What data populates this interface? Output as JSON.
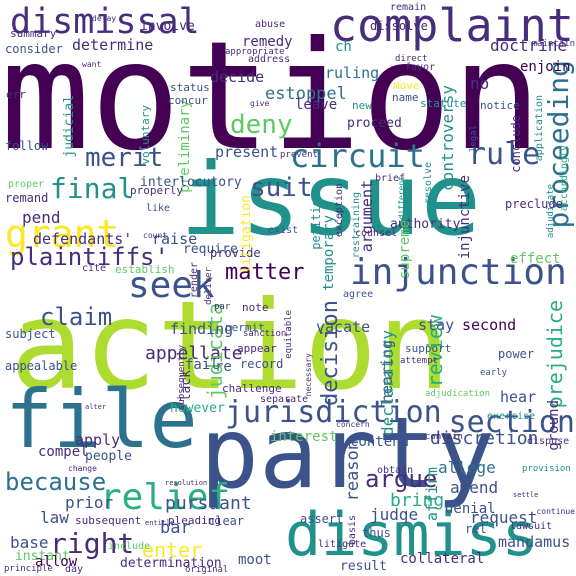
{
  "palette": {
    "deep_purple": "#440154",
    "purple": "#472d7b",
    "indigo": "#3b528b",
    "blue": "#2c728e",
    "teal": "#21918c",
    "green": "#28ae80",
    "light_green": "#5ec962",
    "lime": "#addc30",
    "yellow": "#fde725"
  },
  "words": [
    {
      "text": "motion",
      "color": "#440154"
    },
    {
      "text": "action",
      "color": "#addc30"
    },
    {
      "text": "issue",
      "color": "#21918c"
    },
    {
      "text": "party",
      "color": "#3b528b"
    },
    {
      "text": "file",
      "color": "#2c728e"
    },
    {
      "text": "dismiss",
      "color": "#21918c"
    },
    {
      "text": "complaint",
      "color": "#472d7b"
    },
    {
      "text": "dismissal",
      "color": "#472d7b"
    },
    {
      "text": "injunction",
      "color": "#3b528b"
    },
    {
      "text": "jurisdiction",
      "color": "#3b528b"
    },
    {
      "text": "grant",
      "color": "#fde725"
    },
    {
      "text": "circuit",
      "color": "#2c728e"
    },
    {
      "text": "seek",
      "color": "#3b528b"
    },
    {
      "text": "relief",
      "color": "#28ae80"
    },
    {
      "text": "section",
      "color": "#3b528b"
    },
    {
      "text": "rule",
      "color": "#3b528b"
    },
    {
      "text": "deny",
      "color": "#5ec962"
    },
    {
      "text": "suit",
      "color": "#3b528b"
    },
    {
      "text": "merit",
      "color": "#3b528b"
    },
    {
      "text": "final",
      "color": "#21918c"
    },
    {
      "text": "claim",
      "color": "#3b528b"
    },
    {
      "text": "matter",
      "color": "#440154"
    },
    {
      "text": "plaintiffs'",
      "color": "#472d7b"
    },
    {
      "text": "proceeding",
      "color": "#2c728e"
    },
    {
      "text": "because",
      "color": "#2c728e"
    },
    {
      "text": "right",
      "color": "#472d7b"
    },
    {
      "text": "enter",
      "color": "#fde725"
    },
    {
      "text": "appellate",
      "color": "#472d7b"
    },
    {
      "text": "decision",
      "color": "#3b528b"
    },
    {
      "text": "judicata",
      "color": "#5ec962"
    },
    {
      "text": "discretion",
      "color": "#3b528b"
    },
    {
      "text": "pursuant",
      "color": "#3b528b"
    },
    {
      "text": "argue",
      "color": "#472d7b"
    },
    {
      "text": "review",
      "color": "#28ae80"
    },
    {
      "text": "determine",
      "color": "#472d7b"
    },
    {
      "text": "ruling",
      "color": "#2c728e"
    },
    {
      "text": "doctrine",
      "color": "#472d7b"
    },
    {
      "text": "estoppel",
      "color": "#2c728e"
    },
    {
      "text": "decide",
      "color": "#472d7b"
    },
    {
      "text": "leave",
      "color": "#472d7b"
    },
    {
      "text": "present",
      "color": "#3b528b"
    },
    {
      "text": "pend",
      "color": "#472d7b"
    },
    {
      "text": "defendants'",
      "color": "#472d7b"
    },
    {
      "text": "raise",
      "color": "#3b528b"
    },
    {
      "text": "require",
      "color": "#3b528b"
    },
    {
      "text": "provide",
      "color": "#472d7b"
    },
    {
      "text": "hearing",
      "color": "#3b528b"
    },
    {
      "text": "vacate",
      "color": "#3b528b"
    },
    {
      "text": "stay",
      "color": "#3b528b"
    },
    {
      "text": "second",
      "color": "#440154"
    },
    {
      "text": "effect",
      "color": "#5ec962"
    },
    {
      "text": "argument",
      "color": "#472d7b"
    },
    {
      "text": "authority",
      "color": "#472d7b"
    },
    {
      "text": "controversy",
      "color": "#21918c"
    },
    {
      "text": "preliminary",
      "color": "#5ec962"
    },
    {
      "text": "interlocutory",
      "color": "#3b528b"
    },
    {
      "text": "litigation",
      "color": "#fde725"
    },
    {
      "text": "temporary",
      "color": "#21918c"
    },
    {
      "text": "injunctive",
      "color": "#472d7b"
    },
    {
      "text": "supreme",
      "color": "#5ec962"
    },
    {
      "text": "prejudice",
      "color": "#28ae80"
    },
    {
      "text": "preclude",
      "color": "#472d7b"
    },
    {
      "text": "finding",
      "color": "#3b528b"
    },
    {
      "text": "fail",
      "color": "#3b528b"
    },
    {
      "text": "re",
      "color": "#3b528b"
    },
    {
      "text": "lack",
      "color": "#472d7b"
    },
    {
      "text": "record",
      "color": "#3b528b"
    },
    {
      "text": "declaratory",
      "color": "#21918c"
    },
    {
      "text": "reason",
      "color": "#3b528b"
    },
    {
      "text": "judge",
      "color": "#3b528b"
    },
    {
      "text": "bring",
      "color": "#28ae80"
    },
    {
      "text": "allege",
      "color": "#2c728e"
    },
    {
      "text": "amend",
      "color": "#3b528b"
    },
    {
      "text": "request",
      "color": "#3b528b"
    },
    {
      "text": "hear",
      "color": "#3b528b"
    },
    {
      "text": "ground",
      "color": "#472d7b"
    },
    {
      "text": "contend",
      "color": "#3b528b"
    },
    {
      "text": "interest",
      "color": "#5ec962"
    },
    {
      "text": "however",
      "color": "#28ae80"
    },
    {
      "text": "apply",
      "color": "#472d7b"
    },
    {
      "text": "compel",
      "color": "#472d7b"
    },
    {
      "text": "people",
      "color": "#3b528b"
    },
    {
      "text": "prior",
      "color": "#3b528b"
    },
    {
      "text": "law",
      "color": "#3b528b"
    },
    {
      "text": "base",
      "color": "#3b528b"
    },
    {
      "text": "instant",
      "color": "#5ec962"
    },
    {
      "text": "allow",
      "color": "#440154"
    },
    {
      "text": "bar",
      "color": "#3b528b"
    },
    {
      "text": "clear",
      "color": "#3b528b"
    },
    {
      "text": "subsequent",
      "color": "#472d7b"
    },
    {
      "text": "determination",
      "color": "#472d7b"
    },
    {
      "text": "moot",
      "color": "#3b528b"
    },
    {
      "text": "result",
      "color": "#3b528b"
    },
    {
      "text": "collateral",
      "color": "#472d7b"
    },
    {
      "text": "mandamus",
      "color": "#3b528b"
    },
    {
      "text": "assert",
      "color": "#3b528b"
    },
    {
      "text": "affirm",
      "color": "#21918c"
    },
    {
      "text": "denial",
      "color": "#3b528b"
    },
    {
      "text": "rel",
      "color": "#3b528b"
    },
    {
      "text": "thus",
      "color": "#3b528b"
    },
    {
      "text": "summary",
      "color": "#472d7b"
    },
    {
      "text": "consider",
      "color": "#3b528b"
    },
    {
      "text": "involve",
      "color": "#472d7b"
    },
    {
      "text": "abuse",
      "color": "#472d7b"
    },
    {
      "text": "remain",
      "color": "#472d7b"
    },
    {
      "text": "dissolve",
      "color": "#472d7b"
    },
    {
      "text": "remedy",
      "color": "#472d7b"
    },
    {
      "text": "ch",
      "color": "#21918c"
    },
    {
      "text": "no",
      "color": "#472d7b"
    },
    {
      "text": "enjoin",
      "color": "#440154"
    },
    {
      "text": "judicial",
      "color": "#21918c"
    },
    {
      "text": "status",
      "color": "#3b528b"
    },
    {
      "text": "concur",
      "color": "#3b528b"
    },
    {
      "text": "follow",
      "color": "#3b528b"
    },
    {
      "text": "remand",
      "color": "#472d7b"
    },
    {
      "text": "subject",
      "color": "#3b528b"
    },
    {
      "text": "appealable",
      "color": "#3b528b"
    },
    {
      "text": "permit",
      "color": "#3b528b"
    },
    {
      "text": "appear",
      "color": "#472d7b"
    },
    {
      "text": "note",
      "color": "#472d7b"
    },
    {
      "text": "petition",
      "color": "#21918c"
    },
    {
      "text": "separate",
      "color": "#472d7b"
    },
    {
      "text": "challenge",
      "color": "#472d7b"
    },
    {
      "text": "support",
      "color": "#3b528b"
    },
    {
      "text": "power",
      "color": "#3b528b"
    },
    {
      "text": "attempt",
      "color": "#472d7b"
    },
    {
      "text": "exercise",
      "color": "#21918c"
    },
    {
      "text": "dispose",
      "color": "#472d7b"
    },
    {
      "text": "obtain",
      "color": "#472d7b"
    },
    {
      "text": "proceed",
      "color": "#472d7b"
    },
    {
      "text": "statute",
      "color": "#21918c"
    },
    {
      "text": "name",
      "color": "#3b528b"
    },
    {
      "text": "new",
      "color": "#21918c"
    },
    {
      "text": "move",
      "color": "#fde725"
    },
    {
      "text": "favor",
      "color": "#472d7b"
    },
    {
      "text": "voluntary",
      "color": "#21918c"
    },
    {
      "text": "properly",
      "color": "#472d7b"
    },
    {
      "text": "like",
      "color": "#3b528b"
    },
    {
      "text": "count",
      "color": "#472d7b"
    },
    {
      "text": "cite",
      "color": "#472d7b"
    },
    {
      "text": "establish",
      "color": "#5ec962"
    },
    {
      "text": "render",
      "color": "#472d7b"
    },
    {
      "text": "deliver",
      "color": "#472d7b"
    },
    {
      "text": "agree",
      "color": "#3b528b"
    },
    {
      "text": "exist",
      "color": "#3b528b"
    },
    {
      "text": "counsel",
      "color": "#472d7b"
    },
    {
      "text": "exception",
      "color": "#472d7b"
    },
    {
      "text": "brief",
      "color": "#472d7b"
    },
    {
      "text": "different",
      "color": "#21918c"
    },
    {
      "text": "restraining",
      "color": "#21918c"
    },
    {
      "text": "resolve",
      "color": "#21918c"
    },
    {
      "text": "notice",
      "color": "#3b528b"
    },
    {
      "text": "legal",
      "color": "#3b528b"
    },
    {
      "text": "conclude",
      "color": "#472d7b"
    },
    {
      "text": "application",
      "color": "#21918c"
    },
    {
      "text": "accordingly",
      "color": "#28ae80"
    },
    {
      "text": "adjudicate",
      "color": "#21918c"
    },
    {
      "text": "maintain",
      "color": "#472d7b"
    },
    {
      "text": "continue",
      "color": "#472d7b"
    },
    {
      "text": "lawsuit",
      "color": "#472d7b"
    },
    {
      "text": "adjudication",
      "color": "#5ec962"
    },
    {
      "text": "concern",
      "color": "#472d7b"
    },
    {
      "text": "contain",
      "color": "#472d7b"
    },
    {
      "text": "provision",
      "color": "#21918c"
    },
    {
      "text": "early",
      "color": "#3b528b"
    },
    {
      "text": "prevent",
      "color": "#472d7b"
    },
    {
      "text": "direct",
      "color": "#472d7b"
    },
    {
      "text": "address",
      "color": "#472d7b"
    },
    {
      "text": "appropriate",
      "color": "#472d7b"
    },
    {
      "text": "delay",
      "color": "#472d7b"
    },
    {
      "text": "err",
      "color": "#472d7b"
    },
    {
      "text": "proper",
      "color": "#5ec962"
    },
    {
      "text": "want",
      "color": "#472d7b"
    },
    {
      "text": "pleading",
      "color": "#472d7b"
    },
    {
      "text": "basis",
      "color": "#472d7b"
    },
    {
      "text": "litigate",
      "color": "#472d7b"
    },
    {
      "text": "original",
      "color": "#472d7b"
    },
    {
      "text": "resolution",
      "color": "#472d7b"
    },
    {
      "text": "include",
      "color": "#5ec962"
    },
    {
      "text": "principle",
      "color": "#472d7b"
    },
    {
      "text": "day",
      "color": "#472d7b"
    },
    {
      "text": "sanction",
      "color": "#472d7b"
    },
    {
      "text": "par",
      "color": "#472d7b"
    },
    {
      "text": "necessary",
      "color": "#472d7b"
    },
    {
      "text": "equitable",
      "color": "#472d7b"
    },
    {
      "text": "subsequently",
      "color": "#472d7b"
    },
    {
      "text": "give",
      "color": "#472d7b"
    },
    {
      "text": "change",
      "color": "#472d7b"
    },
    {
      "text": "alter",
      "color": "#472d7b"
    },
    {
      "text": "entitle",
      "color": "#472d7b"
    },
    {
      "text": "settle",
      "color": "#472d7b"
    }
  ]
}
